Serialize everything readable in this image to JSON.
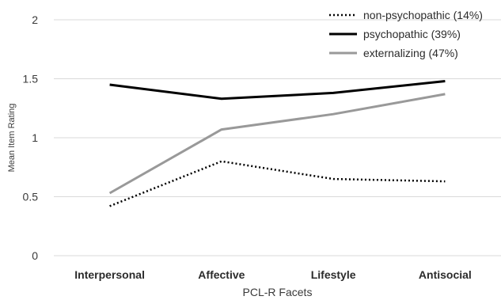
{
  "chart_data": {
    "type": "line",
    "title": "",
    "xlabel": "PCL-R Facets",
    "ylabel": "Mean Item Rating",
    "categories": [
      "Interpersonal",
      "Affective",
      "Lifestyle",
      "Antisocial"
    ],
    "ylim": [
      0,
      2
    ],
    "yticks": [
      "0",
      "0.5",
      "1",
      "1.5",
      "2"
    ],
    "grid": true,
    "legend_position": "top-right",
    "series": [
      {
        "name": "non-psychopathic (14%)",
        "values": [
          0.42,
          0.8,
          0.65,
          0.63
        ],
        "color": "#000000",
        "style": "dotted"
      },
      {
        "name": "psychopathic (39%)",
        "values": [
          1.45,
          1.33,
          1.38,
          1.48
        ],
        "color": "#000000",
        "style": "solid"
      },
      {
        "name": "externalizing (47%)",
        "values": [
          0.53,
          1.07,
          1.2,
          1.37
        ],
        "color": "#999999",
        "style": "solid"
      }
    ]
  }
}
